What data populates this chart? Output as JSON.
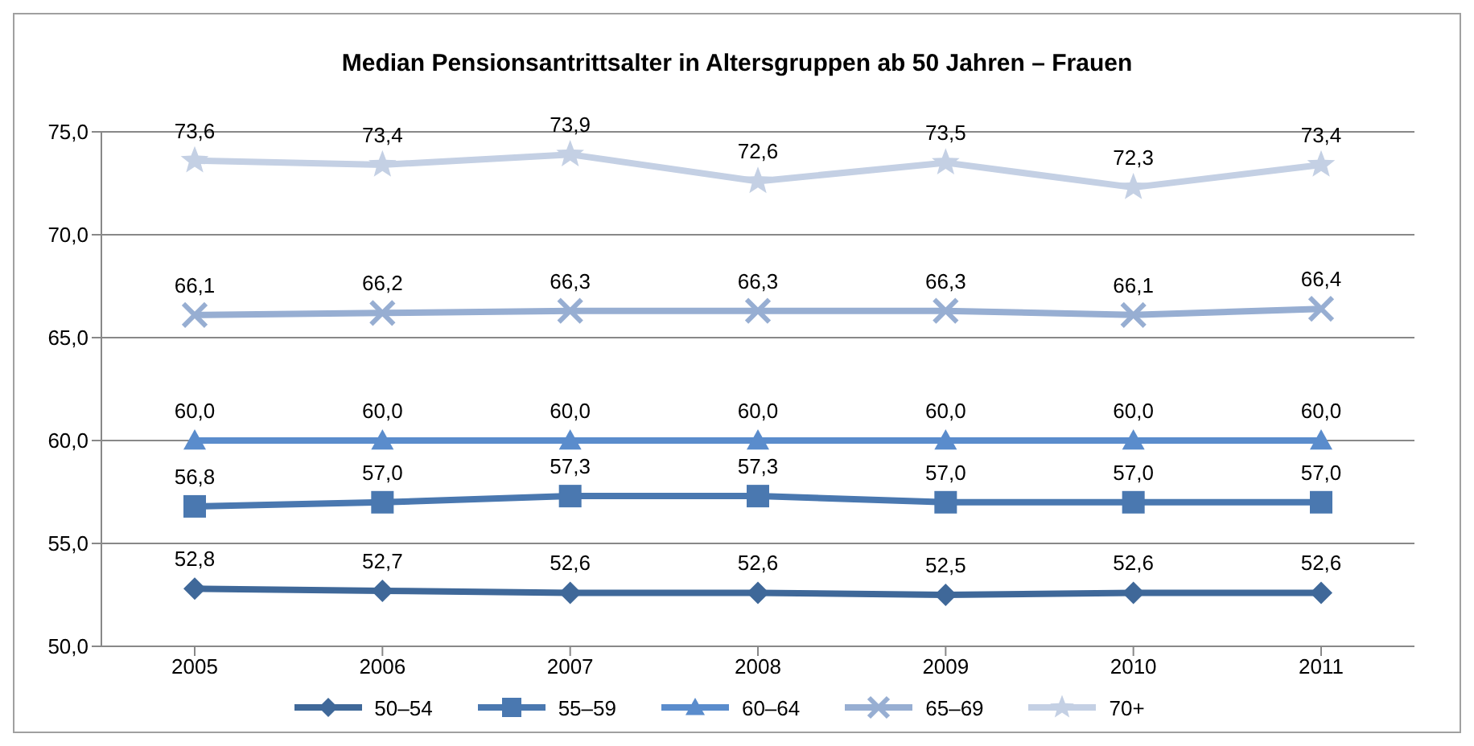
{
  "chart_data": {
    "type": "line",
    "title": "Median Pensionsantrittsalter in Altersgruppen ab 50 Jahren – Frauen",
    "categories": [
      "2005",
      "2006",
      "2007",
      "2008",
      "2009",
      "2010",
      "2011"
    ],
    "series": [
      {
        "name": "50–54",
        "color": "#3f6899",
        "marker": "diamond",
        "values": [
          52.8,
          52.7,
          52.6,
          52.6,
          52.5,
          52.6,
          52.6
        ],
        "value_labels": [
          "52,8",
          "52,7",
          "52,6",
          "52,6",
          "52,5",
          "52,6",
          "52,6"
        ]
      },
      {
        "name": "55–59",
        "color": "#4a78b0",
        "marker": "square",
        "values": [
          56.8,
          57.0,
          57.3,
          57.3,
          57.0,
          57.0,
          57.0
        ],
        "value_labels": [
          "56,8",
          "57,0",
          "57,3",
          "57,3",
          "57,0",
          "57,0",
          "57,0"
        ]
      },
      {
        "name": "60–64",
        "color": "#5a8ccc",
        "marker": "triangle",
        "values": [
          60.0,
          60.0,
          60.0,
          60.0,
          60.0,
          60.0,
          60.0
        ],
        "value_labels": [
          "60,0",
          "60,0",
          "60,0",
          "60,0",
          "60,0",
          "60,0",
          "60,0"
        ]
      },
      {
        "name": "65–69",
        "color": "#97aed2",
        "marker": "cross",
        "values": [
          66.1,
          66.2,
          66.3,
          66.3,
          66.3,
          66.1,
          66.4
        ],
        "value_labels": [
          "66,1",
          "66,2",
          "66,3",
          "66,3",
          "66,3",
          "66,1",
          "66,4"
        ]
      },
      {
        "name": "70+",
        "color": "#c4d0e4",
        "marker": "star",
        "values": [
          73.6,
          73.4,
          73.9,
          72.6,
          73.5,
          72.3,
          73.4
        ],
        "value_labels": [
          "73,6",
          "73,4",
          "73,9",
          "72,6",
          "73,5",
          "72,3",
          "73,4"
        ]
      }
    ],
    "ylim": [
      50,
      75
    ],
    "yticks": [
      {
        "value": 50,
        "label": "50,0"
      },
      {
        "value": 55,
        "label": "55,0"
      },
      {
        "value": 60,
        "label": "60,0"
      },
      {
        "value": 65,
        "label": "65,0"
      },
      {
        "value": 70,
        "label": "70,0"
      },
      {
        "value": 75,
        "label": "75,0"
      }
    ],
    "grid": "y",
    "legend": "bottom",
    "line_style": "solid"
  }
}
